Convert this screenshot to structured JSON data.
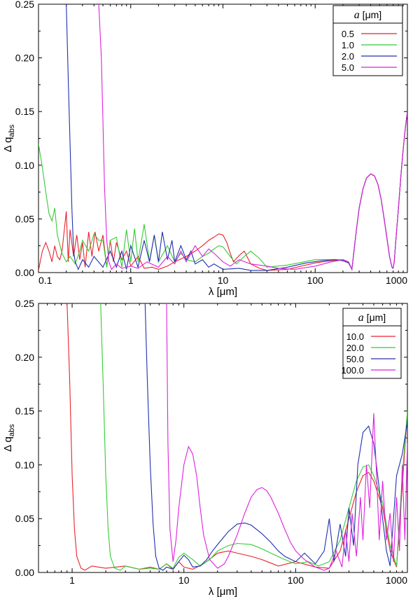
{
  "chart_data": [
    {
      "type": "line",
      "xscale": "log",
      "xlim": [
        0.1,
        1000
      ],
      "ylim": [
        0,
        0.25
      ],
      "xticks": [
        0.1,
        1,
        10,
        100,
        1000
      ],
      "xtick_labels": [
        "0.1",
        "1",
        "10",
        "100",
        "1000"
      ],
      "yticks": [
        0,
        0.05,
        0.1,
        0.15,
        0.2,
        0.25
      ],
      "ytick_labels": [
        "0.00",
        "0.05",
        "0.10",
        "0.15",
        "0.20",
        "0.25"
      ],
      "xlabel": "λ [μm]",
      "ylabel_main": "Δ q",
      "ylabel_sub": "abs",
      "legend_title_symbol": "a",
      "legend_title_unit": " [μm]",
      "legend_position": "top-right",
      "series": [
        {
          "name": "0.5",
          "color": "#e8232b",
          "x": [
            0.1,
            0.11,
            0.12,
            0.13,
            0.14,
            0.15,
            0.16,
            0.17,
            0.18,
            0.2,
            0.21,
            0.22,
            0.24,
            0.26,
            0.28,
            0.3,
            0.32,
            0.35,
            0.38,
            0.41,
            0.45,
            0.5,
            0.55,
            0.6,
            0.65,
            0.7,
            0.8,
            0.9,
            1.0,
            1.2,
            1.4,
            1.7,
            2.0,
            2.5,
            3.0,
            4.0,
            5.0,
            6.0,
            7.0,
            8.0,
            9.0,
            10,
            11,
            12,
            13,
            15,
            17,
            20,
            25,
            30,
            50,
            100,
            150,
            200,
            230,
            250
          ],
          "y": [
            0.002,
            0.02,
            0.028,
            0.02,
            0.01,
            0.025,
            0.015,
            0.012,
            0.02,
            0.057,
            0.01,
            0.04,
            0.015,
            0.035,
            0.012,
            0.028,
            0.005,
            0.038,
            0.015,
            0.038,
            0.02,
            0.035,
            0.005,
            0.03,
            0.01,
            0.028,
            0.012,
            0.02,
            0.006,
            0.015,
            0.004,
            0.005,
            0.003,
            0.006,
            0.01,
            0.015,
            0.02,
            0.025,
            0.03,
            0.033,
            0.036,
            0.035,
            0.028,
            0.018,
            0.01,
            0.016,
            0.02,
            0.008,
            0.004,
            0.002,
            0.003,
            0.009,
            0.011,
            0.012,
            0.01,
            0.003
          ]
        },
        {
          "name": "1.0",
          "color": "#33cc33",
          "x": [
            0.1,
            0.11,
            0.12,
            0.13,
            0.14,
            0.15,
            0.16,
            0.18,
            0.2,
            0.22,
            0.25,
            0.28,
            0.3,
            0.35,
            0.4,
            0.45,
            0.5,
            0.55,
            0.6,
            0.7,
            0.8,
            0.9,
            1.0,
            1.1,
            1.2,
            1.4,
            1.6,
            1.8,
            2.0,
            2.5,
            3.0,
            3.5,
            4,
            5,
            6,
            7,
            8,
            9,
            10,
            12,
            14,
            17,
            20,
            25,
            30,
            50,
            100,
            150,
            200,
            230,
            250
          ],
          "y": [
            0.12,
            0.098,
            0.075,
            0.055,
            0.048,
            0.06,
            0.035,
            0.018,
            0.01,
            0.015,
            0.008,
            0.02,
            0.03,
            0.02,
            0.036,
            0.03,
            0.03,
            0.005,
            0.03,
            0.033,
            0.005,
            0.04,
            0.01,
            0.041,
            0.01,
            0.045,
            0.01,
            0.035,
            0.01,
            0.025,
            0.01,
            0.018,
            0.012,
            0.01,
            0.015,
            0.018,
            0.022,
            0.025,
            0.024,
            0.015,
            0.008,
            0.015,
            0.02,
            0.013,
            0.005,
            0.007,
            0.012,
            0.012,
            0.012,
            0.01,
            0.003
          ]
        },
        {
          "name": "2.0",
          "color": "#2030b0",
          "x": [
            0.2,
            0.21,
            0.22,
            0.23,
            0.24,
            0.25,
            0.27,
            0.3,
            0.35,
            0.4,
            0.5,
            0.6,
            0.7,
            0.8,
            0.9,
            1.0,
            1.2,
            1.4,
            1.6,
            1.8,
            2.0,
            2.2,
            2.5,
            2.8,
            3.0,
            3.5,
            4.0,
            4.5,
            5,
            6,
            7,
            8,
            10,
            15,
            20,
            30,
            50,
            80,
            120,
            160,
            200,
            230,
            250
          ],
          "y": [
            0.25,
            0.18,
            0.12,
            0.06,
            0.02,
            0.01,
            0.003,
            0.012,
            0.005,
            0.015,
            0.005,
            0.02,
            0.005,
            0.02,
            0.003,
            0.025,
            0.005,
            0.03,
            0.01,
            0.035,
            0.01,
            0.038,
            0.012,
            0.03,
            0.01,
            0.025,
            0.012,
            0.02,
            0.008,
            0.012,
            0.005,
            0.008,
            0.003,
            0.004,
            0.002,
            0.002,
            0.005,
            0.009,
            0.011,
            0.012,
            0.011,
            0.009,
            0.003
          ]
        },
        {
          "name": "5.0",
          "color": "#dd22dd",
          "x": [
            0.45,
            0.48,
            0.5,
            0.52,
            0.55,
            0.58,
            0.62,
            0.7,
            0.8,
            1.0,
            1.2,
            1.5,
            2.0,
            2.5,
            3.0,
            3.5,
            4,
            5,
            6,
            7,
            8,
            10,
            12,
            15,
            20,
            30,
            40,
            60,
            100,
            150,
            200,
            230,
            250
          ],
          "y": [
            0.25,
            0.2,
            0.14,
            0.08,
            0.03,
            0.01,
            0.003,
            0.008,
            0.004,
            0.006,
            0.004,
            0.01,
            0.005,
            0.015,
            0.008,
            0.02,
            0.01,
            0.025,
            0.015,
            0.022,
            0.018,
            0.01,
            0.006,
            0.012,
            0.008,
            0.006,
            0.004,
            0.003,
            0.006,
            0.01,
            0.012,
            0.01,
            0.003
          ]
        }
      ],
      "shared_tail": {
        "x": [
          250,
          280,
          300,
          330,
          360,
          400,
          440,
          480,
          520,
          560,
          600,
          640,
          680,
          700,
          720,
          750,
          800,
          850,
          900,
          950,
          1000
        ],
        "y": [
          0.003,
          0.04,
          0.06,
          0.078,
          0.088,
          0.092,
          0.09,
          0.082,
          0.068,
          0.05,
          0.032,
          0.015,
          0.005,
          0.004,
          0.01,
          0.03,
          0.06,
          0.09,
          0.115,
          0.135,
          0.15
        ]
      }
    },
    {
      "type": "line",
      "xscale": "log",
      "xlim": [
        0.5,
        1000
      ],
      "ylim": [
        0,
        0.25
      ],
      "xticks": [
        1,
        10,
        100,
        1000
      ],
      "xtick_labels": [
        "1",
        "10",
        "100",
        "1000"
      ],
      "yticks": [
        0,
        0.05,
        0.1,
        0.15,
        0.2,
        0.25
      ],
      "ytick_labels": [
        "0.00",
        "0.05",
        "0.10",
        "0.15",
        "0.20",
        "0.25"
      ],
      "xlabel": "λ [μm]",
      "ylabel_main": "Δ q",
      "ylabel_sub": "abs",
      "legend_title_symbol": "a",
      "legend_title_unit": " [μm]",
      "legend_position": "top-right",
      "series": [
        {
          "name": "10.0",
          "color": "#e8232b",
          "x": [
            0.9,
            0.95,
            1.0,
            1.05,
            1.1,
            1.2,
            1.3,
            1.5,
            2,
            3,
            4,
            5,
            6,
            7,
            8,
            9,
            10,
            12,
            15,
            20,
            25,
            30,
            40,
            50,
            70,
            100,
            150,
            200,
            250,
            300,
            350,
            400,
            450,
            500,
            600,
            700,
            800,
            900,
            1000
          ],
          "y": [
            0.25,
            0.18,
            0.09,
            0.04,
            0.015,
            0.004,
            0.002,
            0.006,
            0.004,
            0.006,
            0.003,
            0.005,
            0.003,
            0.008,
            0.003,
            0.01,
            0.005,
            0.003,
            0.008,
            0.018,
            0.02,
            0.018,
            0.015,
            0.012,
            0.006,
            0.01,
            0.005,
            0.004,
            0.02,
            0.05,
            0.075,
            0.09,
            0.093,
            0.085,
            0.06,
            0.02,
            0.005,
            0.08,
            0.15
          ]
        },
        {
          "name": "20.0",
          "color": "#33cc33",
          "x": [
            1.8,
            1.9,
            2.0,
            2.1,
            2.2,
            2.4,
            2.7,
            3,
            4,
            5,
            6,
            7,
            8,
            9,
            10,
            12,
            14,
            17,
            20,
            25,
            30,
            40,
            50,
            60,
            80,
            100,
            130,
            160,
            200,
            250,
            300,
            350,
            400,
            450,
            500,
            600,
            700,
            800,
            900,
            1000
          ],
          "y": [
            0.25,
            0.17,
            0.09,
            0.04,
            0.015,
            0.004,
            0.002,
            0.006,
            0.003,
            0.004,
            0.003,
            0.008,
            0.004,
            0.014,
            0.018,
            0.012,
            0.006,
            0.012,
            0.02,
            0.025,
            0.027,
            0.026,
            0.022,
            0.018,
            0.012,
            0.008,
            0.01,
            0.006,
            0.01,
            0.03,
            0.06,
            0.085,
            0.098,
            0.1,
            0.09,
            0.065,
            0.025,
            0.006,
            0.09,
            0.15
          ]
        },
        {
          "name": "50.0",
          "color": "#2030b0",
          "x": [
            4.5,
            4.7,
            5.0,
            5.3,
            5.6,
            6,
            6.5,
            7,
            8,
            9,
            10,
            11,
            12,
            14,
            16,
            18,
            20,
            25,
            30,
            35,
            40,
            50,
            60,
            70,
            80,
            100,
            120,
            150,
            180,
            200,
            220,
            250,
            280,
            300,
            330,
            360,
            400,
            450,
            500,
            550,
            600,
            650,
            700,
            750,
            800,
            900,
            1000
          ],
          "y": [
            0.25,
            0.18,
            0.1,
            0.045,
            0.015,
            0.004,
            0.002,
            0.005,
            0.003,
            0.01,
            0.016,
            0.012,
            0.005,
            0.006,
            0.012,
            0.02,
            0.026,
            0.038,
            0.045,
            0.046,
            0.044,
            0.036,
            0.028,
            0.02,
            0.015,
            0.01,
            0.018,
            0.008,
            0.02,
            0.05,
            0.01,
            0.045,
            0.015,
            0.06,
            0.025,
            0.1,
            0.13,
            0.136,
            0.12,
            0.085,
            0.05,
            0.02,
            0.006,
            0.05,
            0.09,
            0.11,
            0.14
          ]
        },
        {
          "name": "100.0",
          "color": "#dd22dd",
          "x": [
            7.0,
            7.2,
            7.5,
            8.0,
            8.5,
            9,
            10,
            11,
            12,
            13,
            14,
            15,
            17,
            20,
            23,
            25,
            30,
            35,
            40,
            45,
            50,
            55,
            60,
            70,
            80,
            90,
            100,
            120,
            150,
            180,
            200,
            230,
            260,
            280,
            300,
            320,
            350,
            380,
            400,
            430,
            460,
            500,
            530,
            560,
            600,
            650,
            700,
            750,
            800,
            850,
            900,
            950,
            1000
          ],
          "y": [
            0.25,
            0.12,
            0.04,
            0.01,
            0.03,
            0.06,
            0.1,
            0.117,
            0.11,
            0.09,
            0.06,
            0.035,
            0.012,
            0.004,
            0.008,
            0.015,
            0.035,
            0.055,
            0.07,
            0.077,
            0.079,
            0.076,
            0.07,
            0.055,
            0.04,
            0.028,
            0.02,
            0.012,
            0.005,
            0.002,
            0.004,
            0.02,
            0.005,
            0.04,
            0.01,
            0.055,
            0.015,
            0.07,
            0.03,
            0.1,
            0.06,
            0.148,
            0.09,
            0.03,
            0.085,
            0.03,
            0.055,
            0.01,
            0.07,
            0.02,
            0.1,
            0.03,
            0.12
          ]
        }
      ]
    }
  ]
}
